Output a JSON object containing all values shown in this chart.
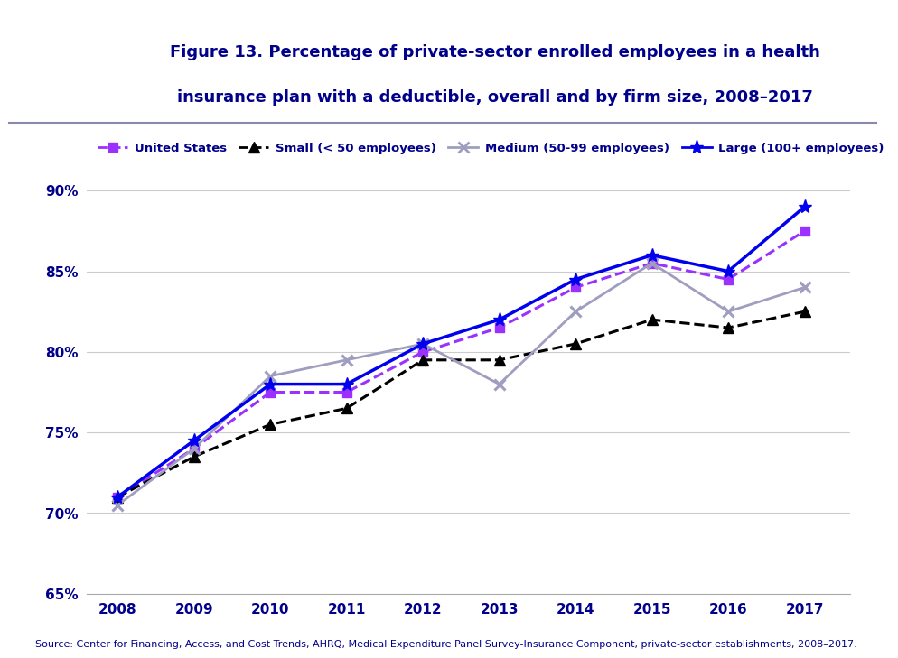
{
  "title_line1": "Figure 13. Percentage of private-sector enrolled employees in a health",
  "title_line2": "insurance plan with a deductible, overall and by firm size, 2008–2017",
  "source": "Source: Center for Financing, Access, and Cost Trends, AHRQ, Medical Expenditure Panel Survey-Insurance Component, private-sector establishments, 2008–2017.",
  "years": [
    2008,
    2009,
    2010,
    2011,
    2012,
    2013,
    2014,
    2015,
    2016,
    2017
  ],
  "united_states": [
    71.0,
    74.0,
    77.5,
    77.5,
    80.0,
    81.5,
    84.0,
    85.5,
    84.5,
    87.5
  ],
  "small": [
    71.0,
    73.5,
    75.5,
    76.5,
    79.5,
    79.5,
    80.5,
    82.0,
    81.5,
    82.5
  ],
  "medium": [
    70.5,
    74.0,
    78.5,
    79.5,
    80.5,
    78.0,
    82.5,
    85.5,
    82.5,
    84.0
  ],
  "large": [
    71.0,
    74.5,
    78.0,
    78.0,
    80.5,
    82.0,
    84.5,
    86.0,
    85.0,
    89.0
  ],
  "color_us": "#9B30FF",
  "color_small": "#000000",
  "color_medium": "#A09EC0",
  "color_large": "#0000EE",
  "ylim": [
    65,
    91
  ],
  "yticks": [
    65,
    70,
    75,
    80,
    85,
    90
  ],
  "header_bg": "#C8C8C8",
  "title_color": "#00008B",
  "source_color": "#00008B",
  "tick_color": "#00008B",
  "legend_labels": [
    "United States",
    "Small (< 50 employees)",
    "Medium (50-99 employees)",
    "Large (100+ employees)"
  ]
}
